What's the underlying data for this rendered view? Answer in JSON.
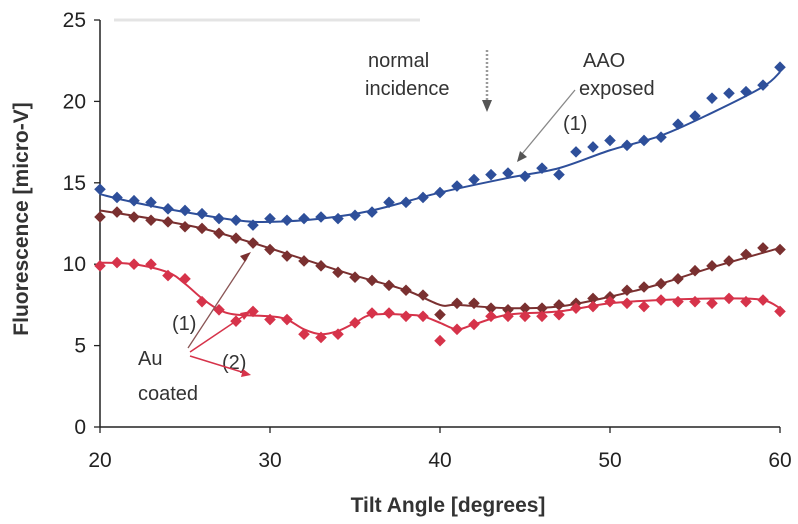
{
  "chart_data": {
    "type": "scatter",
    "xlabel": "Tilt Angle [degrees]",
    "ylabel": "Fluorescence [micro-V]",
    "xlim": [
      20,
      60
    ],
    "ylim": [
      0,
      25
    ],
    "xticks": [
      20,
      30,
      40,
      50,
      60
    ],
    "yticks": [
      0,
      5,
      10,
      15,
      20,
      25
    ],
    "grid": false,
    "legend": "none",
    "series": [
      {
        "color": "#2e4f9a",
        "marker": "diamond",
        "points": [
          [
            20,
            14.6
          ],
          [
            21,
            14.1
          ],
          [
            22,
            13.9
          ],
          [
            23,
            13.8
          ],
          [
            24,
            13.4
          ],
          [
            25,
            13.3
          ],
          [
            26,
            13.1
          ],
          [
            27,
            12.8
          ],
          [
            28,
            12.7
          ],
          [
            29,
            12.4
          ],
          [
            30,
            12.8
          ],
          [
            31,
            12.7
          ],
          [
            32,
            12.8
          ],
          [
            33,
            12.9
          ],
          [
            34,
            12.8
          ],
          [
            35,
            13.0
          ],
          [
            36,
            13.2
          ],
          [
            37,
            13.8
          ],
          [
            38,
            13.8
          ],
          [
            39,
            14.1
          ],
          [
            40,
            14.4
          ],
          [
            41,
            14.8
          ],
          [
            42,
            15.2
          ],
          [
            43,
            15.5
          ],
          [
            44,
            15.6
          ],
          [
            45,
            15.4
          ],
          [
            46,
            15.9
          ],
          [
            47,
            15.5
          ],
          [
            48,
            16.9
          ],
          [
            49,
            17.2
          ],
          [
            50,
            17.6
          ],
          [
            51,
            17.3
          ],
          [
            52,
            17.6
          ],
          [
            53,
            17.8
          ],
          [
            54,
            18.6
          ],
          [
            55,
            19.1
          ],
          [
            56,
            20.2
          ],
          [
            57,
            20.5
          ],
          [
            58,
            20.6
          ],
          [
            59,
            21.0
          ],
          [
            60,
            22.1
          ]
        ],
        "fit": [
          [
            20,
            14.3
          ],
          [
            22,
            13.8
          ],
          [
            25,
            13.2
          ],
          [
            28,
            12.7
          ],
          [
            30,
            12.6
          ],
          [
            33,
            12.8
          ],
          [
            36,
            13.3
          ],
          [
            40,
            14.4
          ],
          [
            44,
            15.3
          ],
          [
            47,
            15.9
          ],
          [
            50,
            17.0
          ],
          [
            53,
            17.9
          ],
          [
            56,
            19.3
          ],
          [
            59,
            20.9
          ],
          [
            60,
            21.8
          ]
        ]
      },
      {
        "color": "#7a3030",
        "marker": "diamond",
        "points": [
          [
            20,
            12.9
          ],
          [
            21,
            13.2
          ],
          [
            22,
            12.9
          ],
          [
            23,
            12.7
          ],
          [
            24,
            12.6
          ],
          [
            25,
            12.3
          ],
          [
            26,
            12.2
          ],
          [
            27,
            11.9
          ],
          [
            28,
            11.6
          ],
          [
            29,
            11.3
          ],
          [
            30,
            10.9
          ],
          [
            31,
            10.5
          ],
          [
            32,
            10.2
          ],
          [
            33,
            9.9
          ],
          [
            34,
            9.5
          ],
          [
            35,
            9.2
          ],
          [
            36,
            9.0
          ],
          [
            37,
            8.7
          ],
          [
            38,
            8.4
          ],
          [
            39,
            8.1
          ],
          [
            40,
            6.9
          ],
          [
            41,
            7.6
          ],
          [
            42,
            7.6
          ],
          [
            43,
            7.3
          ],
          [
            44,
            7.2
          ],
          [
            45,
            7.3
          ],
          [
            46,
            7.3
          ],
          [
            47,
            7.5
          ],
          [
            48,
            7.6
          ],
          [
            49,
            7.9
          ],
          [
            50,
            8.0
          ],
          [
            51,
            8.4
          ],
          [
            52,
            8.6
          ],
          [
            53,
            8.8
          ],
          [
            54,
            9.1
          ],
          [
            55,
            9.6
          ],
          [
            56,
            9.9
          ],
          [
            57,
            10.2
          ],
          [
            58,
            10.6
          ],
          [
            59,
            11.0
          ],
          [
            60,
            10.9
          ]
        ],
        "fit": [
          [
            20,
            13.3
          ],
          [
            23,
            12.8
          ],
          [
            26,
            12.2
          ],
          [
            29,
            11.3
          ],
          [
            32,
            10.3
          ],
          [
            35,
            9.3
          ],
          [
            38,
            8.4
          ],
          [
            40,
            7.5
          ],
          [
            41,
            7.5
          ],
          [
            44,
            7.3
          ],
          [
            47,
            7.4
          ],
          [
            50,
            8.0
          ],
          [
            53,
            8.8
          ],
          [
            56,
            9.8
          ],
          [
            60,
            11.0
          ]
        ]
      },
      {
        "color": "#d6334a",
        "marker": "diamond",
        "points": [
          [
            20,
            9.9
          ],
          [
            21,
            10.1
          ],
          [
            22,
            10.0
          ],
          [
            23,
            10.0
          ],
          [
            24,
            9.3
          ],
          [
            25,
            9.1
          ],
          [
            26,
            7.7
          ],
          [
            27,
            7.2
          ],
          [
            28,
            6.5
          ],
          [
            29,
            7.1
          ],
          [
            30,
            6.6
          ],
          [
            31,
            6.6
          ],
          [
            32,
            5.7
          ],
          [
            33,
            5.5
          ],
          [
            34,
            5.7
          ],
          [
            35,
            6.4
          ],
          [
            36,
            7.0
          ],
          [
            37,
            7.0
          ],
          [
            38,
            6.8
          ],
          [
            39,
            6.8
          ],
          [
            40,
            5.3
          ],
          [
            41,
            6.0
          ],
          [
            42,
            6.3
          ],
          [
            43,
            6.8
          ],
          [
            44,
            6.8
          ],
          [
            45,
            6.8
          ],
          [
            46,
            6.8
          ],
          [
            47,
            6.9
          ],
          [
            48,
            7.3
          ],
          [
            49,
            7.4
          ],
          [
            50,
            7.7
          ],
          [
            51,
            7.6
          ],
          [
            52,
            7.4
          ],
          [
            53,
            7.8
          ],
          [
            54,
            7.7
          ],
          [
            55,
            7.7
          ],
          [
            56,
            7.6
          ],
          [
            57,
            7.9
          ],
          [
            58,
            7.7
          ],
          [
            59,
            7.8
          ],
          [
            60,
            7.1
          ]
        ],
        "fit": [
          [
            20,
            10.1
          ],
          [
            22,
            10.0
          ],
          [
            24,
            9.5
          ],
          [
            25,
            8.8
          ],
          [
            26,
            7.9
          ],
          [
            27,
            7.2
          ],
          [
            28,
            6.9
          ],
          [
            30,
            6.8
          ],
          [
            31,
            6.6
          ],
          [
            32,
            6.0
          ],
          [
            33,
            5.7
          ],
          [
            34,
            5.9
          ],
          [
            35,
            6.4
          ],
          [
            36,
            6.9
          ],
          [
            38,
            6.9
          ],
          [
            39,
            6.8
          ],
          [
            40,
            6.4
          ],
          [
            41,
            6.0
          ],
          [
            42,
            6.3
          ],
          [
            44,
            6.9
          ],
          [
            47,
            7.1
          ],
          [
            50,
            7.6
          ],
          [
            53,
            7.8
          ],
          [
            57,
            7.9
          ],
          [
            59,
            7.8
          ],
          [
            60,
            7.3
          ]
        ]
      }
    ],
    "annotations": {
      "normal1": "normal",
      "normal2": "incidence",
      "aao1": "AAO",
      "aao2": "exposed",
      "aao_num": "(1)",
      "au_num1": "(1)",
      "au_num2": "(2)",
      "au1": "Au",
      "au2": "coated"
    }
  }
}
